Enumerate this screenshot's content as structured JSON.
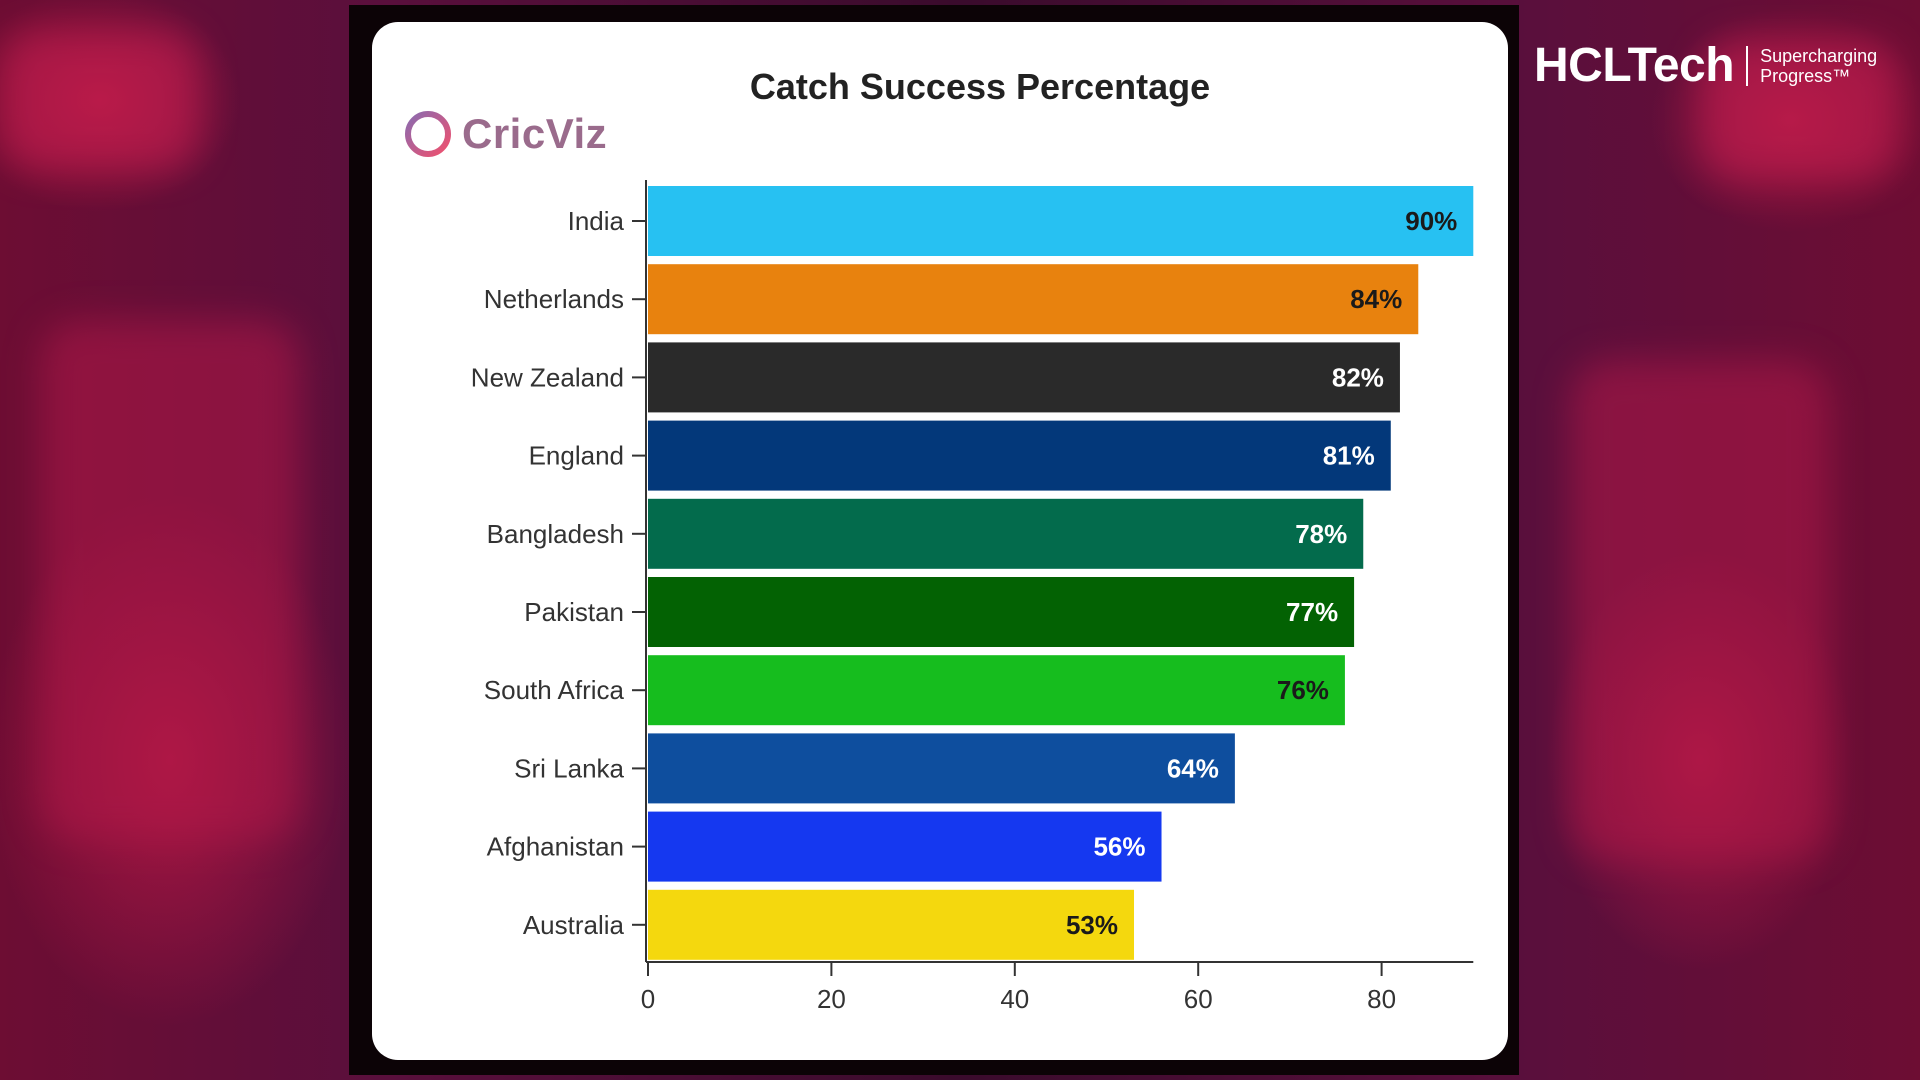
{
  "brand": {
    "cricviz_logo": "CricViz",
    "hcl_name": "HCLTech",
    "hcl_tagline": "Supercharging Progress™"
  },
  "colors": {
    "background": "#5a0f3c",
    "accent": "#e81e4e"
  },
  "chart_data": {
    "type": "bar",
    "orientation": "horizontal",
    "title": "Catch Success Percentage",
    "xlabel": "",
    "ylabel": "",
    "categories": [
      "India",
      "Netherlands",
      "New Zealand",
      "England",
      "Bangladesh",
      "Pakistan",
      "South Africa",
      "Sri Lanka",
      "Afghanistan",
      "Australia"
    ],
    "values": [
      90,
      84,
      82,
      81,
      78,
      77,
      76,
      64,
      56,
      53
    ],
    "value_labels": [
      "90%",
      "84%",
      "82%",
      "81%",
      "78%",
      "77%",
      "76%",
      "64%",
      "56%",
      "53%"
    ],
    "bar_colors": [
      "#27c1f2",
      "#e8820e",
      "#2a2a2a",
      "#03387a",
      "#036b4c",
      "#036203",
      "#16bd1e",
      "#0e4e9e",
      "#1538f0",
      "#f4d80e"
    ],
    "label_colors": [
      "#1a1a1a",
      "#1a1a1a",
      "#ffffff",
      "#ffffff",
      "#ffffff",
      "#ffffff",
      "#1a1a1a",
      "#ffffff",
      "#ffffff",
      "#1a1a1a"
    ],
    "xlim": [
      0,
      90
    ],
    "xticks": [
      0,
      20,
      40,
      60,
      80
    ],
    "grid": false,
    "legend": "none"
  }
}
